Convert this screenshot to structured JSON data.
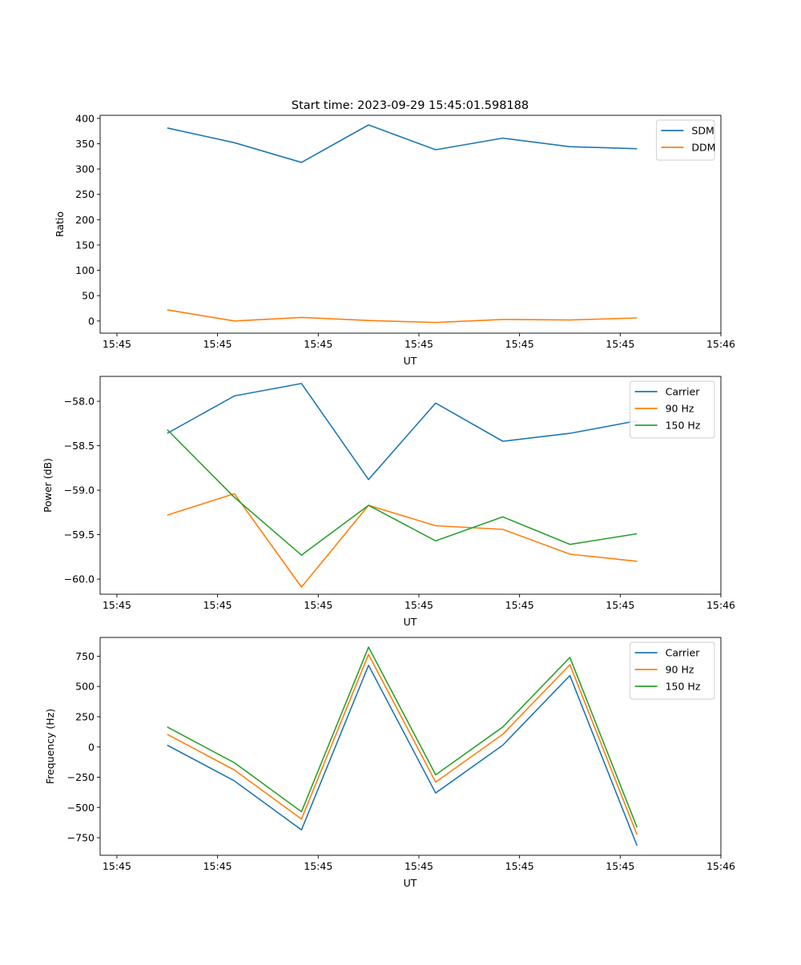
{
  "chart_data": [
    {
      "type": "line",
      "title": "Start time: 2023-09-29 15:45:01.598188",
      "xlabel": "UT",
      "ylabel": "Ratio",
      "x": [
        1,
        2,
        3,
        4,
        5,
        6,
        7,
        8
      ],
      "xlim": [
        0,
        9.25
      ],
      "xticks": [
        0.25,
        1.75,
        3.25,
        4.75,
        6.25,
        7.75,
        9.25
      ],
      "xtick_labels": [
        "15:45",
        "15:45",
        "15:45",
        "15:45",
        "15:45",
        "15:45",
        "15:46"
      ],
      "ylim": [
        -24,
        406
      ],
      "yticks": [
        0,
        50,
        100,
        150,
        200,
        250,
        300,
        350,
        400
      ],
      "ytick_labels": [
        "0",
        "50",
        "100",
        "150",
        "200",
        "250",
        "300",
        "350",
        "400"
      ],
      "legend_position": "top-right",
      "series": [
        {
          "name": "SDM",
          "color": "#1f77b4",
          "values": [
            381,
            352,
            313,
            387,
            338,
            361,
            344,
            340
          ]
        },
        {
          "name": "DDM",
          "color": "#ff7f0e",
          "values": [
            22,
            0,
            7,
            1,
            -3,
            3,
            2,
            6
          ]
        }
      ]
    },
    {
      "type": "line",
      "title": "",
      "xlabel": "UT",
      "ylabel": "Power (dB)",
      "x": [
        1,
        2,
        3,
        4,
        5,
        6,
        7,
        8
      ],
      "xlim": [
        0,
        9.25
      ],
      "xticks": [
        0.25,
        1.75,
        3.25,
        4.75,
        6.25,
        7.75,
        9.25
      ],
      "xtick_labels": [
        "15:45",
        "15:45",
        "15:45",
        "15:45",
        "15:45",
        "15:45",
        "15:46"
      ],
      "ylim": [
        -60.17,
        -57.72
      ],
      "yticks": [
        -60.0,
        -59.5,
        -59.0,
        -58.5,
        -58.0
      ],
      "ytick_labels": [
        "−60.0",
        "−59.5",
        "−59.0",
        "−58.5",
        "−58.0"
      ],
      "legend_position": "top-right",
      "series": [
        {
          "name": "Carrier",
          "color": "#1f77b4",
          "values": [
            -58.36,
            -57.94,
            -57.8,
            -58.88,
            -58.02,
            -58.45,
            -58.36,
            -58.22
          ]
        },
        {
          "name": "90 Hz",
          "color": "#ff7f0e",
          "values": [
            -59.28,
            -59.04,
            -60.09,
            -59.17,
            -59.4,
            -59.44,
            -59.72,
            -59.8
          ]
        },
        {
          "name": "150 Hz",
          "color": "#2ca02c",
          "values": [
            -58.32,
            -59.08,
            -59.73,
            -59.17,
            -59.57,
            -59.3,
            -59.61,
            -59.49
          ]
        }
      ]
    },
    {
      "type": "line",
      "title": "",
      "xlabel": "UT",
      "ylabel": "Frequency (Hz)",
      "x": [
        1,
        2,
        3,
        4,
        5,
        6,
        7,
        8
      ],
      "xlim": [
        0,
        9.25
      ],
      "xticks": [
        0.25,
        1.75,
        3.25,
        4.75,
        6.25,
        7.75,
        9.25
      ],
      "xtick_labels": [
        "15:45",
        "15:45",
        "15:45",
        "15:45",
        "15:45",
        "15:45",
        "15:46"
      ],
      "ylim": [
        -895,
        905
      ],
      "yticks": [
        -750,
        -500,
        -250,
        0,
        250,
        500,
        750
      ],
      "ytick_labels": [
        "−750",
        "−500",
        "−250",
        "0",
        "250",
        "500",
        "750"
      ],
      "legend_position": "top-right",
      "series": [
        {
          "name": "Carrier",
          "color": "#1f77b4",
          "values": [
            15,
            -280,
            -685,
            675,
            -380,
            15,
            590,
            -815
          ]
        },
        {
          "name": "90 Hz",
          "color": "#ff7f0e",
          "values": [
            105,
            -190,
            -595,
            765,
            -290,
            105,
            680,
            -725
          ]
        },
        {
          "name": "150 Hz",
          "color": "#2ca02c",
          "values": [
            165,
            -130,
            -535,
            825,
            -230,
            165,
            740,
            -665
          ]
        }
      ]
    }
  ]
}
